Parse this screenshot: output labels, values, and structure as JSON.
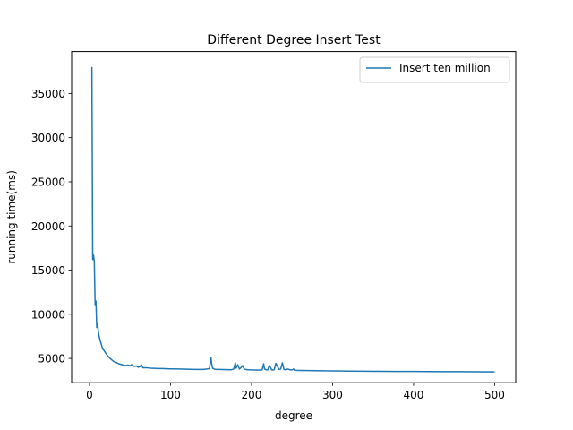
{
  "chart_data": {
    "type": "line",
    "title": "Different Degree Insert Test",
    "xlabel": "degree",
    "ylabel": "running time(ms)",
    "xlim": [
      -22,
      526
    ],
    "ylim": [
      2250,
      39750
    ],
    "xticks": [
      0,
      100,
      200,
      300,
      400,
      500
    ],
    "yticks": [
      5000,
      10000,
      15000,
      20000,
      25000,
      30000,
      35000
    ],
    "grid": false,
    "legend_position": "top-right",
    "series": [
      {
        "name": "Insert ten million",
        "color": "#1f77b4",
        "x": [
          3,
          4,
          5,
          6,
          7,
          8,
          9,
          10,
          11,
          12,
          13,
          14,
          15,
          16,
          18,
          20,
          22,
          24,
          26,
          28,
          30,
          33,
          36,
          40,
          44,
          48,
          50,
          52,
          55,
          58,
          60,
          62,
          64,
          66,
          70,
          75,
          80,
          85,
          90,
          95,
          100,
          110,
          120,
          130,
          140,
          145,
          148,
          150,
          151,
          152,
          154,
          156,
          160,
          165,
          170,
          175,
          178,
          180,
          181,
          183,
          185,
          187,
          189,
          191,
          193,
          195,
          200,
          205,
          210,
          213,
          215,
          216,
          218,
          220,
          222,
          225,
          228,
          230,
          232,
          234,
          236,
          238,
          239,
          240,
          242,
          245,
          248,
          250,
          252,
          253,
          255,
          260,
          270,
          280,
          290,
          300,
          320,
          340,
          360,
          380,
          400,
          420,
          440,
          460,
          480,
          500
        ],
        "y": [
          38000,
          16200,
          16700,
          16000,
          11000,
          11500,
          8500,
          9000,
          8000,
          7500,
          7100,
          6800,
          6500,
          6100,
          5900,
          5600,
          5350,
          5150,
          4950,
          4800,
          4650,
          4550,
          4400,
          4300,
          4200,
          4250,
          4150,
          4300,
          4100,
          4150,
          4000,
          4050,
          4300,
          3950,
          3950,
          3900,
          3880,
          3860,
          3850,
          3830,
          3820,
          3800,
          3780,
          3760,
          3750,
          3800,
          3850,
          5100,
          4300,
          3900,
          3800,
          3760,
          3750,
          3740,
          3730,
          3720,
          3800,
          4500,
          3900,
          4300,
          3800,
          3950,
          4200,
          3780,
          3750,
          3720,
          3700,
          3690,
          3680,
          3700,
          4400,
          3800,
          3720,
          3700,
          4200,
          3700,
          3720,
          4450,
          4100,
          3750,
          3800,
          4500,
          4150,
          3750,
          3720,
          3800,
          3700,
          3700,
          3800,
          3680,
          3650,
          3640,
          3630,
          3610,
          3600,
          3590,
          3570,
          3550,
          3540,
          3530,
          3520,
          3510,
          3500,
          3500,
          3490,
          3480
        ]
      }
    ]
  }
}
